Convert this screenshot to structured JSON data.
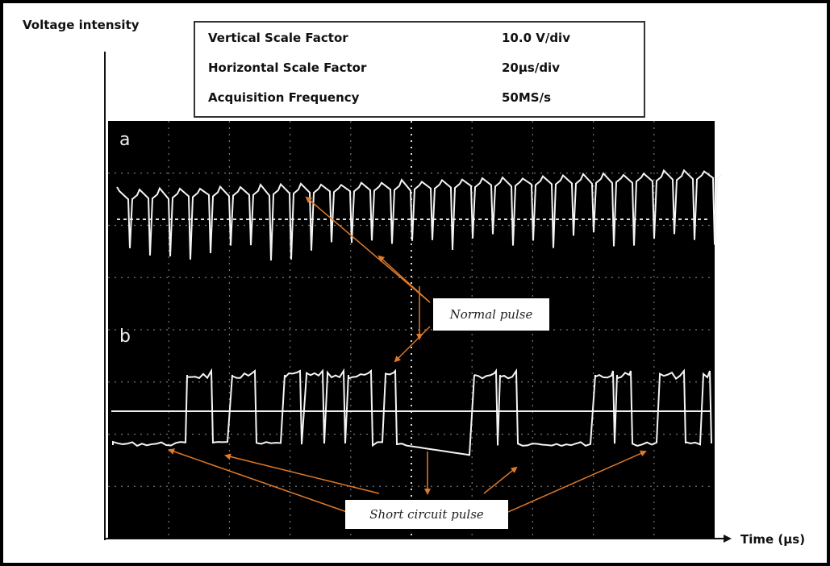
{
  "header": {
    "y_axis_label": "Voltage intensity",
    "x_axis_label": "Time (µs)"
  },
  "settings": {
    "rows": [
      [
        "Vertical Scale Factor",
        "10.0 V/div"
      ],
      [
        "Horizontal Scale Factor",
        "20µs/div"
      ],
      [
        "Acquisition Frequency",
        "50MS/s"
      ]
    ]
  },
  "panels": [
    "a",
    "b"
  ],
  "annotations": [
    "Normal pulse",
    "Short circuit pulse"
  ]
}
